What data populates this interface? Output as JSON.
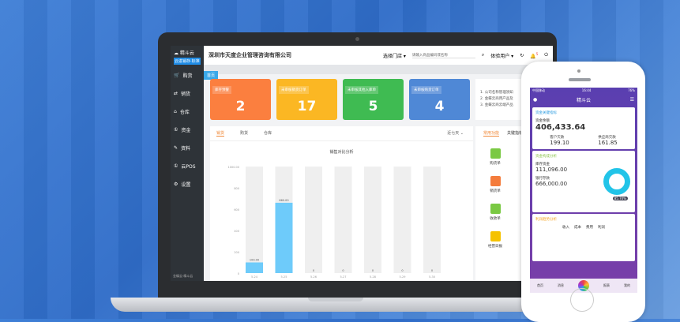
{
  "app": {
    "company": "深圳市天度企业管理咨询有限公司",
    "logo_name": "精斗云",
    "logo_tag": "云进销存·标准",
    "store_select": "选择门店",
    "search_placeholder": "请输入商品编码或名称",
    "user": "体验用户",
    "tab": "首页",
    "footer": "金蝶云·精斗云",
    "notif_count": "5"
  },
  "sidebar": {
    "items": [
      {
        "label": "购货",
        "icon": "cart-icon"
      },
      {
        "label": "销货",
        "icon": "sales-icon"
      },
      {
        "label": "仓库",
        "icon": "warehouse-icon"
      },
      {
        "label": "资金",
        "icon": "money-icon"
      },
      {
        "label": "资料",
        "icon": "pen-icon"
      },
      {
        "label": "云POS",
        "icon": "pos-icon"
      },
      {
        "label": "设置",
        "icon": "gear-icon"
      }
    ]
  },
  "cards": [
    {
      "label": "库存预警",
      "value": "2",
      "color": "#fb7f3f"
    },
    {
      "label": "未审核销货订单",
      "value": "17",
      "color": "#fbb723"
    },
    {
      "label": "未审核其他入库单",
      "value": "5",
      "color": "#3fbb52"
    },
    {
      "label": "未审核购货订单",
      "value": "4",
      "color": "#4f88d6"
    }
  ],
  "notice": [
    "1. 公司名称管理须知",
    "2. 金蝶云商用产品及",
    "3. 金蝶云商云端产品"
  ],
  "chart_tabs": [
    "销货",
    "购货",
    "仓库"
  ],
  "range": "近七天",
  "chart_data": {
    "type": "bar",
    "title": "销售对比分析",
    "categories": [
      "5-24",
      "5-25",
      "5-26",
      "5-27",
      "5-28",
      "5-29",
      "5-30"
    ],
    "values": [
      100,
      660,
      0,
      0,
      0,
      0,
      0
    ],
    "value_labels": [
      "100.00",
      "660.00",
      "0",
      "0",
      "0",
      "0",
      "0"
    ],
    "yticks": [
      0,
      200,
      400,
      600,
      800
    ],
    "ymax_label": "1000.00",
    "ylim": [
      0,
      1000
    ],
    "color": "#6ecbfa"
  },
  "func": {
    "tabs": [
      "常用功能",
      "关键指标"
    ],
    "items": [
      {
        "label": "购货单",
        "color": "#7ac943"
      },
      {
        "label": "销货单",
        "color": "#f47c3c"
      },
      {
        "label": "收款单",
        "color": "#7ac943"
      },
      {
        "label": "经营日报",
        "color": "#f5c200"
      }
    ]
  },
  "phone": {
    "status_left": "中国移动",
    "time": "16:44",
    "battery": "76%",
    "title": "精斗云",
    "c1_title": "资金关键指标",
    "total_label": "资金余额",
    "total": "406,433.64",
    "a_label": "客户欠款",
    "a": "199.10",
    "b_label": "供应商欠款",
    "b": "161.85",
    "c2_title": "资金构成分析",
    "x_label": "库存资金",
    "x": "111,096.00",
    "y_label": "银行存款",
    "y": "666,000.00",
    "pct": "85.70%",
    "c3_title": "利润趋势分析",
    "legend": [
      "收入",
      "成本",
      "费用",
      "利润"
    ],
    "nav": [
      "首页",
      "消息",
      "",
      "报表",
      "我的"
    ]
  }
}
